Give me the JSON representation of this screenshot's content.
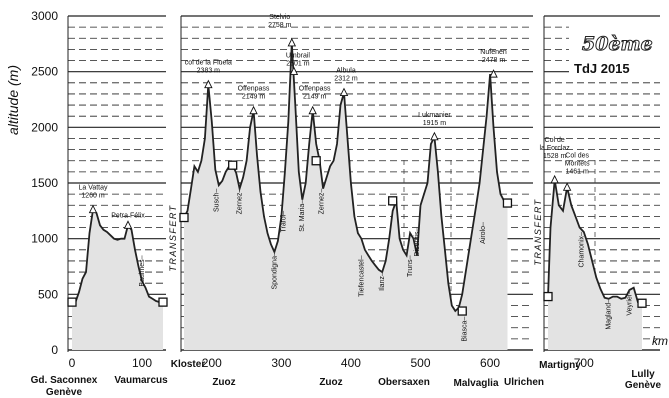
{
  "chart_data": {
    "type": "area",
    "title": "50ème",
    "subtitle": "TdJ 2015",
    "ylabel": "altitude (m)",
    "xunit": "km",
    "ylim": [
      0,
      3000
    ],
    "yticks": [
      "0",
      "500",
      "1000",
      "1500",
      "2000",
      "2500",
      "3000"
    ],
    "xticks": [
      "0",
      "100",
      "200",
      "300",
      "400",
      "500",
      "600",
      "700"
    ],
    "grid": true,
    "fill_color": "#e3e3e3",
    "line_color": "#222222",
    "transfer_label": "TRANSFERT",
    "stages": [
      {
        "x": [
          0,
          5,
          10,
          15,
          20,
          25,
          30,
          35,
          40,
          45,
          50,
          55,
          60,
          65,
          70,
          75,
          80,
          85,
          90,
          95,
          100,
          105,
          110,
          115,
          120,
          125,
          130
        ],
        "y": [
          430,
          430,
          520,
          640,
          700,
          1050,
          1260,
          1230,
          1120,
          1080,
          1060,
          1030,
          1000,
          990,
          1000,
          1000,
          1120,
          1080,
          900,
          750,
          620,
          560,
          480,
          460,
          440,
          430,
          430
        ]
      },
      {
        "x": [
          160,
          165,
          170,
          175,
          180,
          185,
          190,
          195,
          200,
          205,
          210,
          215,
          220,
          225,
          230,
          235,
          240,
          245,
          250,
          255,
          260,
          265,
          270,
          275,
          280,
          285,
          290,
          295,
          300,
          305,
          310,
          315,
          320,
          325,
          330,
          335,
          340,
          345,
          350,
          355,
          360,
          365,
          370,
          375,
          380,
          385,
          390,
          395,
          400,
          405,
          410,
          415,
          420,
          425,
          430,
          435,
          440,
          445,
          450,
          455,
          460,
          465,
          470,
          475,
          480,
          485,
          490,
          495,
          500,
          505,
          510,
          515,
          520,
          525,
          530,
          535,
          540,
          545,
          550,
          555,
          560,
          565,
          570,
          575,
          580,
          585,
          590,
          595,
          600,
          605,
          610,
          615,
          620,
          625
        ],
        "y": [
          1190,
          1250,
          1450,
          1650,
          1600,
          1700,
          1900,
          2383,
          2050,
          1620,
          1480,
          1520,
          1600,
          1650,
          1660,
          1590,
          1450,
          1550,
          1700,
          2000,
          2149,
          1750,
          1420,
          1200,
          1050,
          950,
          880,
          980,
          1200,
          1600,
          2050,
          2758,
          2200,
          1600,
          1350,
          1500,
          1850,
          2149,
          1850,
          1700,
          1450,
          1550,
          1650,
          1700,
          1850,
          2200,
          2312,
          1900,
          1500,
          1200,
          1050,
          1000,
          900,
          850,
          800,
          760,
          720,
          700,
          800,
          1000,
          1250,
          1340,
          1000,
          900,
          850,
          1050,
          1000,
          850,
          1300,
          1400,
          1500,
          1850,
          1915,
          1600,
          1200,
          900,
          600,
          400,
          350,
          380,
          500,
          700,
          900,
          1100,
          1300,
          1500,
          1800,
          2100,
          2478,
          2000,
          1600,
          1400,
          1340,
          1320
        ]
      },
      {
        "x": [
          657,
          660,
          665,
          670,
          675,
          680,
          685,
          690,
          695,
          700,
          705,
          710,
          715,
          720,
          725,
          730,
          735,
          740,
          745,
          750,
          755,
          760,
          765,
          770
        ],
        "y": [
          480,
          1100,
          1528,
          1300,
          1250,
          1461,
          1300,
          1200,
          1100,
          1060,
          950,
          800,
          650,
          550,
          470,
          460,
          480,
          480,
          460,
          470,
          540,
          560,
          430,
          420
        ]
      }
    ],
    "cities": [
      {
        "label": "Gd. Saconnex Genève",
        "x": 0,
        "elev": 430
      },
      {
        "label": "Vaumarcus",
        "x": 130,
        "elev": 430
      },
      {
        "label": "Kloster",
        "x": 160,
        "elev": 1190
      },
      {
        "label": "Zuoz",
        "x": 230,
        "elev": 1660
      },
      {
        "label": "Zuoz",
        "x": 350,
        "elev": 1700
      },
      {
        "label": "Obersaxen",
        "x": 460,
        "elev": 1340
      },
      {
        "label": "Malvaglia",
        "x": 560,
        "elev": 350
      },
      {
        "label": "Ulrichen",
        "x": 625,
        "elev": 1320
      },
      {
        "label": "Martigny",
        "x": 657,
        "elev": 480
      },
      {
        "label": "Lully Genève",
        "x": 770,
        "elev": 420
      }
    ],
    "passes": [
      {
        "name": "La Vattay",
        "elev": "1260 m",
        "x": 30,
        "y": 1260
      },
      {
        "name": "Petra Félix",
        "x": 80,
        "y": 1120
      },
      {
        "name": "col de la Fluela",
        "elev": "2383 m",
        "x": 195,
        "y": 2383
      },
      {
        "name": "Offenpass",
        "elev": "2149 m",
        "x": 260,
        "y": 2149
      },
      {
        "name": "Stelvio",
        "elev": "2758 m",
        "x": 315,
        "y": 2758
      },
      {
        "name": "Umbrail",
        "elev": "2501 m",
        "x": 318,
        "y": 2501
      },
      {
        "name": "Offenpass",
        "elev": "2149 m",
        "x": 345,
        "y": 2149
      },
      {
        "name": "Albula",
        "elev": "2312 m",
        "x": 390,
        "y": 2312
      },
      {
        "name": "Lukmanier",
        "elev": "1915 m",
        "x": 520,
        "y": 1915
      },
      {
        "name": "Nufenen",
        "elev": "2478 m",
        "x": 605,
        "y": 2478
      },
      {
        "name": "Col de la Forclaz",
        "elev": "1528 m",
        "x": 665,
        "y": 1528
      },
      {
        "name": "Col des Montets",
        "elev": "1461 m",
        "x": 680,
        "y": 1461
      }
    ],
    "towns": [
      {
        "label": "Baulmes",
        "x": 100,
        "y": 850
      },
      {
        "label": "Susch",
        "x": 207,
        "y": 1450
      },
      {
        "label": "Zernez",
        "x": 240,
        "y": 1450
      },
      {
        "label": "Spondigna",
        "x": 290,
        "y": 880
      },
      {
        "label": "Trafoi",
        "x": 303,
        "y": 1250
      },
      {
        "label": "St. Maria",
        "x": 330,
        "y": 1350
      },
      {
        "label": "Zernez",
        "x": 358,
        "y": 1450
      },
      {
        "label": "Tiefencastel",
        "x": 415,
        "y": 850
      },
      {
        "label": "Ilanz",
        "x": 445,
        "y": 700
      },
      {
        "label": "Truns",
        "x": 485,
        "y": 850
      },
      {
        "label": "Disentis",
        "x": 495,
        "y": 1100
      },
      {
        "label": "Biasca",
        "x": 563,
        "y": 300
      },
      {
        "label": "Airolo",
        "x": 590,
        "y": 1150
      },
      {
        "label": "Chamonix",
        "x": 697,
        "y": 1060
      },
      {
        "label": "Magland",
        "x": 730,
        "y": 460
      },
      {
        "label": "Veyrier",
        "x": 755,
        "y": 540
      }
    ]
  }
}
